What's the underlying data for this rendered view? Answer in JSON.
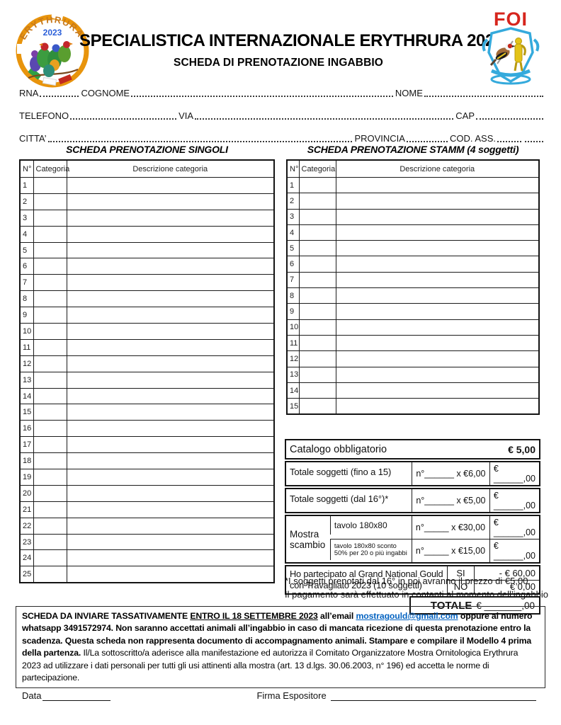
{
  "header": {
    "title": "SPECIALISTICA INTERNAZIONALE ERYTHRURA 2023",
    "subtitle": "SCHEDA DI PRENOTAZIONE INGABBIO"
  },
  "logos": {
    "erythrura": {
      "name": "ERYTHRURA",
      "year": "2023"
    },
    "foi": {
      "text": "FOI"
    }
  },
  "fields": {
    "rna": "RNA",
    "cognome": "COGNOME",
    "nome": "NOME",
    "telefono": "TELEFONO",
    "via": "VIA",
    "cap": "CAP",
    "citta": "CITTA’",
    "provincia": "PROVINCIA",
    "cod_ass": "COD. ASS."
  },
  "singles_table": {
    "title": "SCHEDA PRENOTAZIONE SINGOLI",
    "headers": [
      "N°",
      "Categoria",
      "Descrizione categoria"
    ],
    "rows": [
      "1",
      "2",
      "3",
      "4",
      "5",
      "6",
      "7",
      "8",
      "9",
      "10",
      "11",
      "12",
      "13",
      "14",
      "15",
      "16",
      "17",
      "18",
      "19",
      "20",
      "21",
      "22",
      "23",
      "24",
      "25"
    ]
  },
  "stamm_table": {
    "title": "SCHEDA PRENOTAZIONE STAMM (4 soggetti)",
    "headers": [
      "N°",
      "Categoria",
      "Descrizione categoria"
    ],
    "rows": [
      "1",
      "2",
      "3",
      "4",
      "5",
      "6",
      "7",
      "8",
      "9",
      "10",
      "11",
      "12",
      "13",
      "14",
      "15"
    ]
  },
  "pricing": {
    "catalogo": {
      "label": "Catalogo obbligatorio",
      "amount": "€ 5,00"
    },
    "soggetti_rows": [
      {
        "label": "Totale soggetti (fino a 15)",
        "qty": "n°______ x €6,00",
        "amount": "€ ______,00"
      },
      {
        "label": "Totale soggetti (dal 16°)*",
        "qty": "n°______ x €5,00",
        "amount": "€ ______,00"
      }
    ],
    "mostra_scambio": {
      "label": "Mostra scambio",
      "rows": [
        {
          "sub": "tavolo 180x80",
          "qty": "n°_____ x €30,00",
          "amount": "€ ______,00"
        },
        {
          "sub": "tavolo 180x80 sconto 50% per 20 o più ingabbi",
          "qty": "n°_____ x €15,00",
          "amount": "€ ______,00"
        }
      ]
    },
    "gould": {
      "label": "Ho partecipato al Grand National Gould con Travagliato 2023 (10 soggetti)",
      "yes_label": "SI",
      "yes_amount": "- € 60,00",
      "no_label": "NO",
      "no_amount": "€ 0,00"
    },
    "totale": {
      "label": "TOTALE",
      "amount": "€ _______,00"
    },
    "footnote1": "*I soggetti prenotati dal 16° in poi avranno il prezzo di €5,00.",
    "footnote2": "Il pagamento sarà effettuato in contanti al momento dell’ingabbio"
  },
  "footer": {
    "bold_intro": "SCHEDA DA INVIARE TASSATIVAMENTE ",
    "deadline": "ENTRO IL 18 SETTEMBRE 2023",
    "after_deadline": " all’email ",
    "email": "mostragould@gmail.com",
    "bold_rest": " oppure al numero whatsapp 3491572974. Non saranno accettati animali all’ingabbio in caso di mancata ricezione di questa prenotazione entro la scadenza. Questa scheda non rappresenta documento di accompagnamento animali. Stampare e compilare il Modello 4 prima della partenza.",
    "normal_text": "Il/La sottoscritto/a aderisce alla manifestazione ed autorizza il Comitato Organizzatore Mostra Ornitologica Erythrura 2023 ad utilizzare i dati personali per tutti gli usi attinenti alla mostra (art. 13 d.lgs. 30.06.2003, n° 196) ed accetta le norme di partecipazione.",
    "data_label": "Data",
    "firma_label": "Firma Espositore"
  }
}
